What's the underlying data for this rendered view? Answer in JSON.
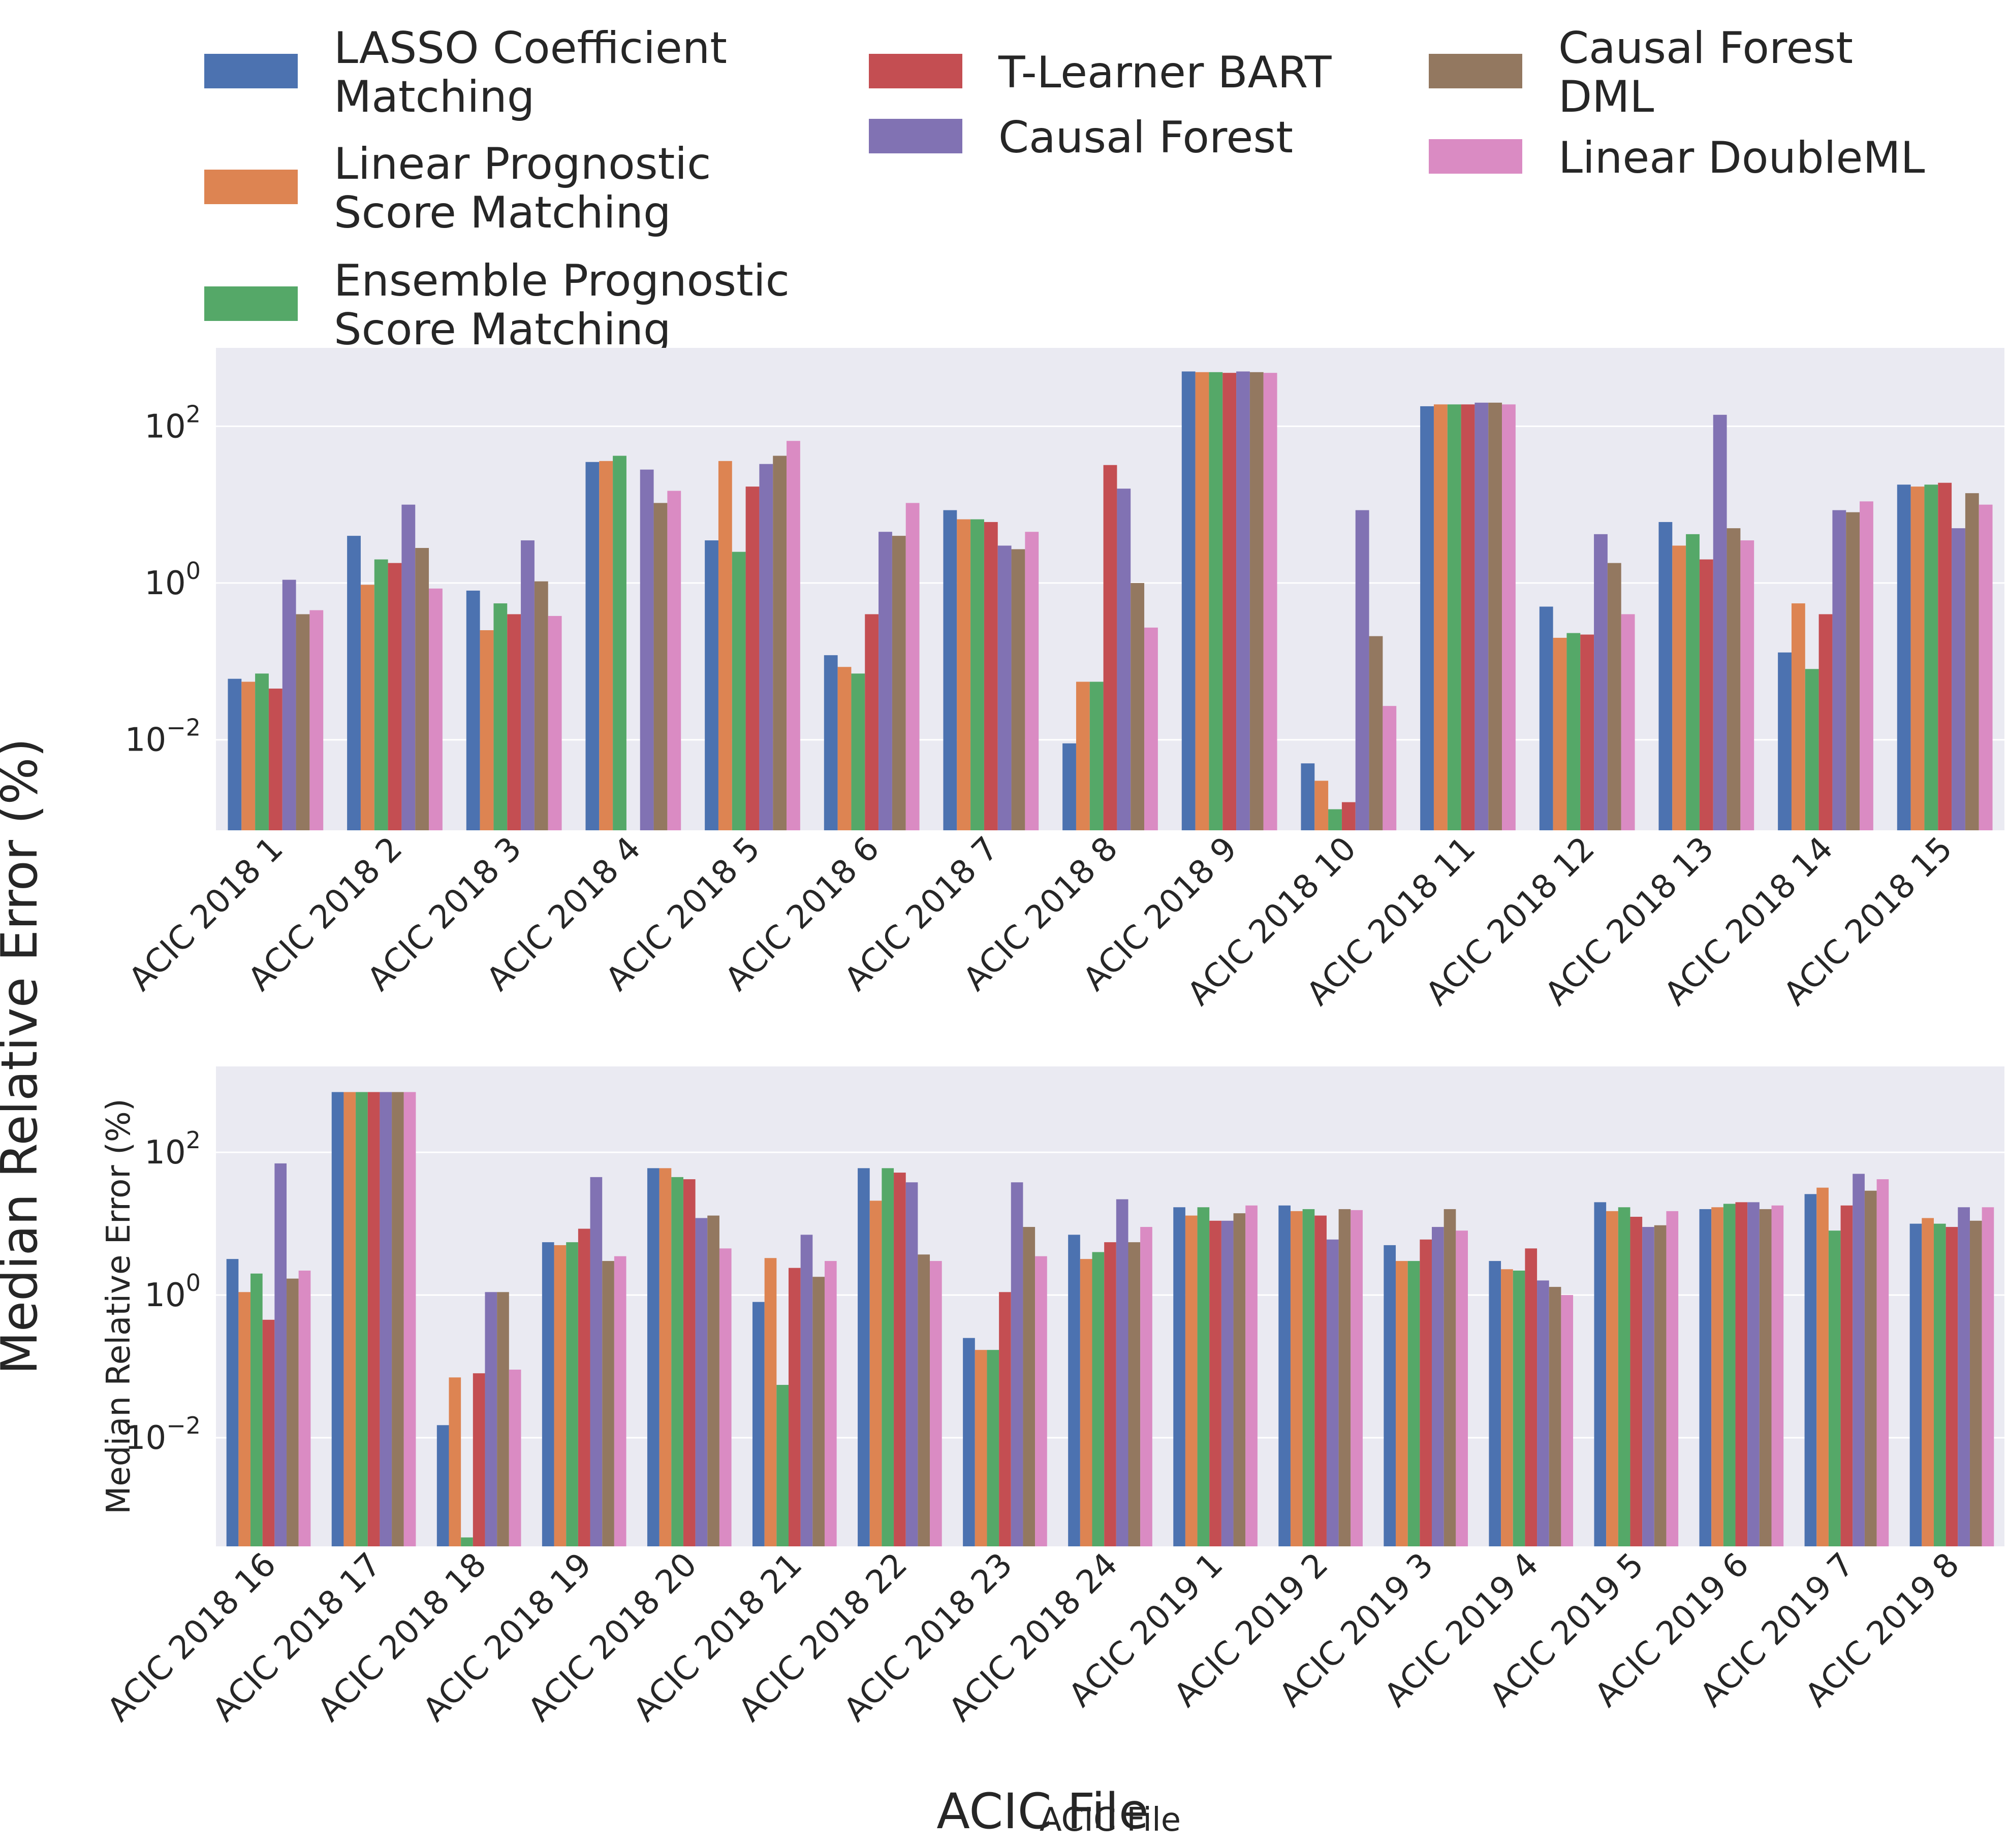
{
  "figure": {
    "ylabel": "Median Relative Error (%)",
    "xlabel": "ACIC File"
  },
  "legend": {
    "placement": "top",
    "entries": [
      {
        "label_lines": [
          "LASSO Coefficient",
          "Matching"
        ],
        "color": "#4c72b0"
      },
      {
        "label_lines": [
          "Linear Prognostic",
          "Score Matching"
        ],
        "color": "#dd8452"
      },
      {
        "label_lines": [
          "Ensemble Prognostic",
          "Score Matching"
        ],
        "color": "#55a868"
      },
      {
        "label_lines": [
          "T-Learner BART"
        ],
        "color": "#c44e52"
      },
      {
        "label_lines": [
          "Causal Forest"
        ],
        "color": "#8172b3"
      },
      {
        "label_lines": [
          "Causal Forest",
          "DML"
        ],
        "color": "#937860"
      },
      {
        "label_lines": [
          "Linear DoubleML"
        ],
        "color": "#da8bc3"
      }
    ]
  },
  "style": {
    "axes_background": "#eaeaf2",
    "grid_color": "#ffffff"
  },
  "chart_data": [
    {
      "type": "bar",
      "yscale": "log",
      "ylim": [
        0.0007,
        1000
      ],
      "yticks": [
        {
          "value": 0.01,
          "label": "10",
          "exp": "−2"
        },
        {
          "value": 1,
          "label": "10",
          "exp": "0"
        },
        {
          "value": 100,
          "label": "10",
          "exp": "2"
        }
      ],
      "grid": true,
      "xlabel": "",
      "ylabel": "",
      "categories": [
        "ACIC 2018 1",
        "ACIC 2018 2",
        "ACIC 2018 3",
        "ACIC 2018 4",
        "ACIC 2018 5",
        "ACIC 2018 6",
        "ACIC 2018 7",
        "ACIC 2018 8",
        "ACIC 2018 9",
        "ACIC 2018 10",
        "ACIC 2018 11",
        "ACIC 2018 12",
        "ACIC 2018 13",
        "ACIC 2018 14",
        "ACIC 2018 15"
      ],
      "series": [
        {
          "name": "LASSO Coefficient Matching",
          "values": [
            0.06,
            4,
            0.8,
            35,
            3.5,
            0.12,
            8.5,
            0.009,
            500,
            0.005,
            180,
            0.5,
            6,
            0.13,
            18
          ]
        },
        {
          "name": "Linear Prognostic Score Matching",
          "values": [
            0.055,
            0.95,
            0.25,
            36,
            36,
            0.085,
            6.5,
            0.055,
            490,
            0.003,
            190,
            0.2,
            3,
            0.55,
            17
          ]
        },
        {
          "name": "Ensemble Prognostic Score Matching",
          "values": [
            0.07,
            2,
            0.55,
            42,
            2.5,
            0.07,
            6.5,
            0.055,
            490,
            0.0013,
            190,
            0.23,
            4.2,
            0.08,
            18
          ]
        },
        {
          "name": "T-Learner BART",
          "values": [
            0.045,
            1.8,
            0.4,
            null,
            17,
            0.4,
            6,
            32,
            480,
            0.0016,
            190,
            0.22,
            2,
            0.4,
            19
          ]
        },
        {
          "name": "Causal Forest",
          "values": [
            1.1,
            10,
            3.5,
            28,
            33,
            4.5,
            3,
            16,
            500,
            8.5,
            200,
            4.2,
            140,
            8.5,
            5
          ]
        },
        {
          "name": "Causal Forest DML",
          "values": [
            0.4,
            2.8,
            1.05,
            10.5,
            42,
            4,
            2.7,
            1,
            490,
            0.21,
            200,
            1.8,
            5,
            8,
            14
          ]
        },
        {
          "name": "Linear DoubleML",
          "values": [
            0.45,
            0.85,
            0.38,
            15,
            65,
            10.5,
            4.5,
            0.27,
            480,
            0.027,
            190,
            0.4,
            3.5,
            11,
            10
          ]
        }
      ]
    },
    {
      "type": "bar",
      "yscale": "log",
      "ylim": [
        0.0003,
        1600
      ],
      "yticks": [
        {
          "value": 0.01,
          "label": "10",
          "exp": "−2"
        },
        {
          "value": 1,
          "label": "10",
          "exp": "0"
        },
        {
          "value": 100,
          "label": "10",
          "exp": "2"
        }
      ],
      "grid": true,
      "xlabel": "ACIC File",
      "ylabel": "Median Relative Error (%)",
      "categories": [
        "ACIC 2018 16",
        "ACIC 2018 17",
        "ACIC 2018 18",
        "ACIC 2018 19",
        "ACIC 2018 20",
        "ACIC 2018 21",
        "ACIC 2018 22",
        "ACIC 2018 23",
        "ACIC 2018 24",
        "ACIC 2019 1",
        "ACIC 2019 2",
        "ACIC 2019 3",
        "ACIC 2019 4",
        "ACIC 2019 5",
        "ACIC 2019 6",
        "ACIC 2019 7",
        "ACIC 2019 8"
      ],
      "series": [
        {
          "name": "LASSO Coefficient Matching",
          "values": [
            3.2,
            700,
            0.015,
            5.5,
            60,
            0.8,
            60,
            0.25,
            7,
            17,
            18,
            5,
            3,
            20,
            16,
            26,
            10
          ]
        },
        {
          "name": "Linear Prognostic Score Matching",
          "values": [
            1.1,
            700,
            0.07,
            5,
            60,
            3.3,
            21,
            0.17,
            3.2,
            13,
            15,
            3,
            2.3,
            15,
            17,
            32,
            12
          ]
        },
        {
          "name": "Ensemble Prognostic Score Matching",
          "values": [
            2,
            700,
            0.0004,
            5.5,
            45,
            0.055,
            60,
            0.17,
            4,
            17,
            16,
            3,
            2.2,
            17,
            19,
            8,
            10
          ]
        },
        {
          "name": "T-Learner BART",
          "values": [
            0.45,
            700,
            0.08,
            8.5,
            42,
            2.4,
            52,
            1.1,
            5.5,
            11,
            13,
            6,
            4.5,
            12.5,
            20,
            18,
            9
          ]
        },
        {
          "name": "Causal Forest",
          "values": [
            70,
            700,
            1.1,
            45,
            12,
            7,
            38,
            38,
            22,
            11,
            6,
            9,
            1.6,
            9,
            20,
            50,
            17
          ]
        },
        {
          "name": "Causal Forest DML",
          "values": [
            1.7,
            700,
            1.1,
            3,
            13,
            1.8,
            3.7,
            9,
            5.5,
            14,
            16,
            16,
            1.3,
            9.5,
            16,
            29,
            11
          ]
        },
        {
          "name": "Linear DoubleML",
          "values": [
            2.2,
            700,
            0.09,
            3.5,
            4.5,
            3,
            3,
            3.5,
            9,
            18,
            15.5,
            8,
            1,
            15,
            18,
            42,
            17
          ]
        }
      ]
    }
  ]
}
